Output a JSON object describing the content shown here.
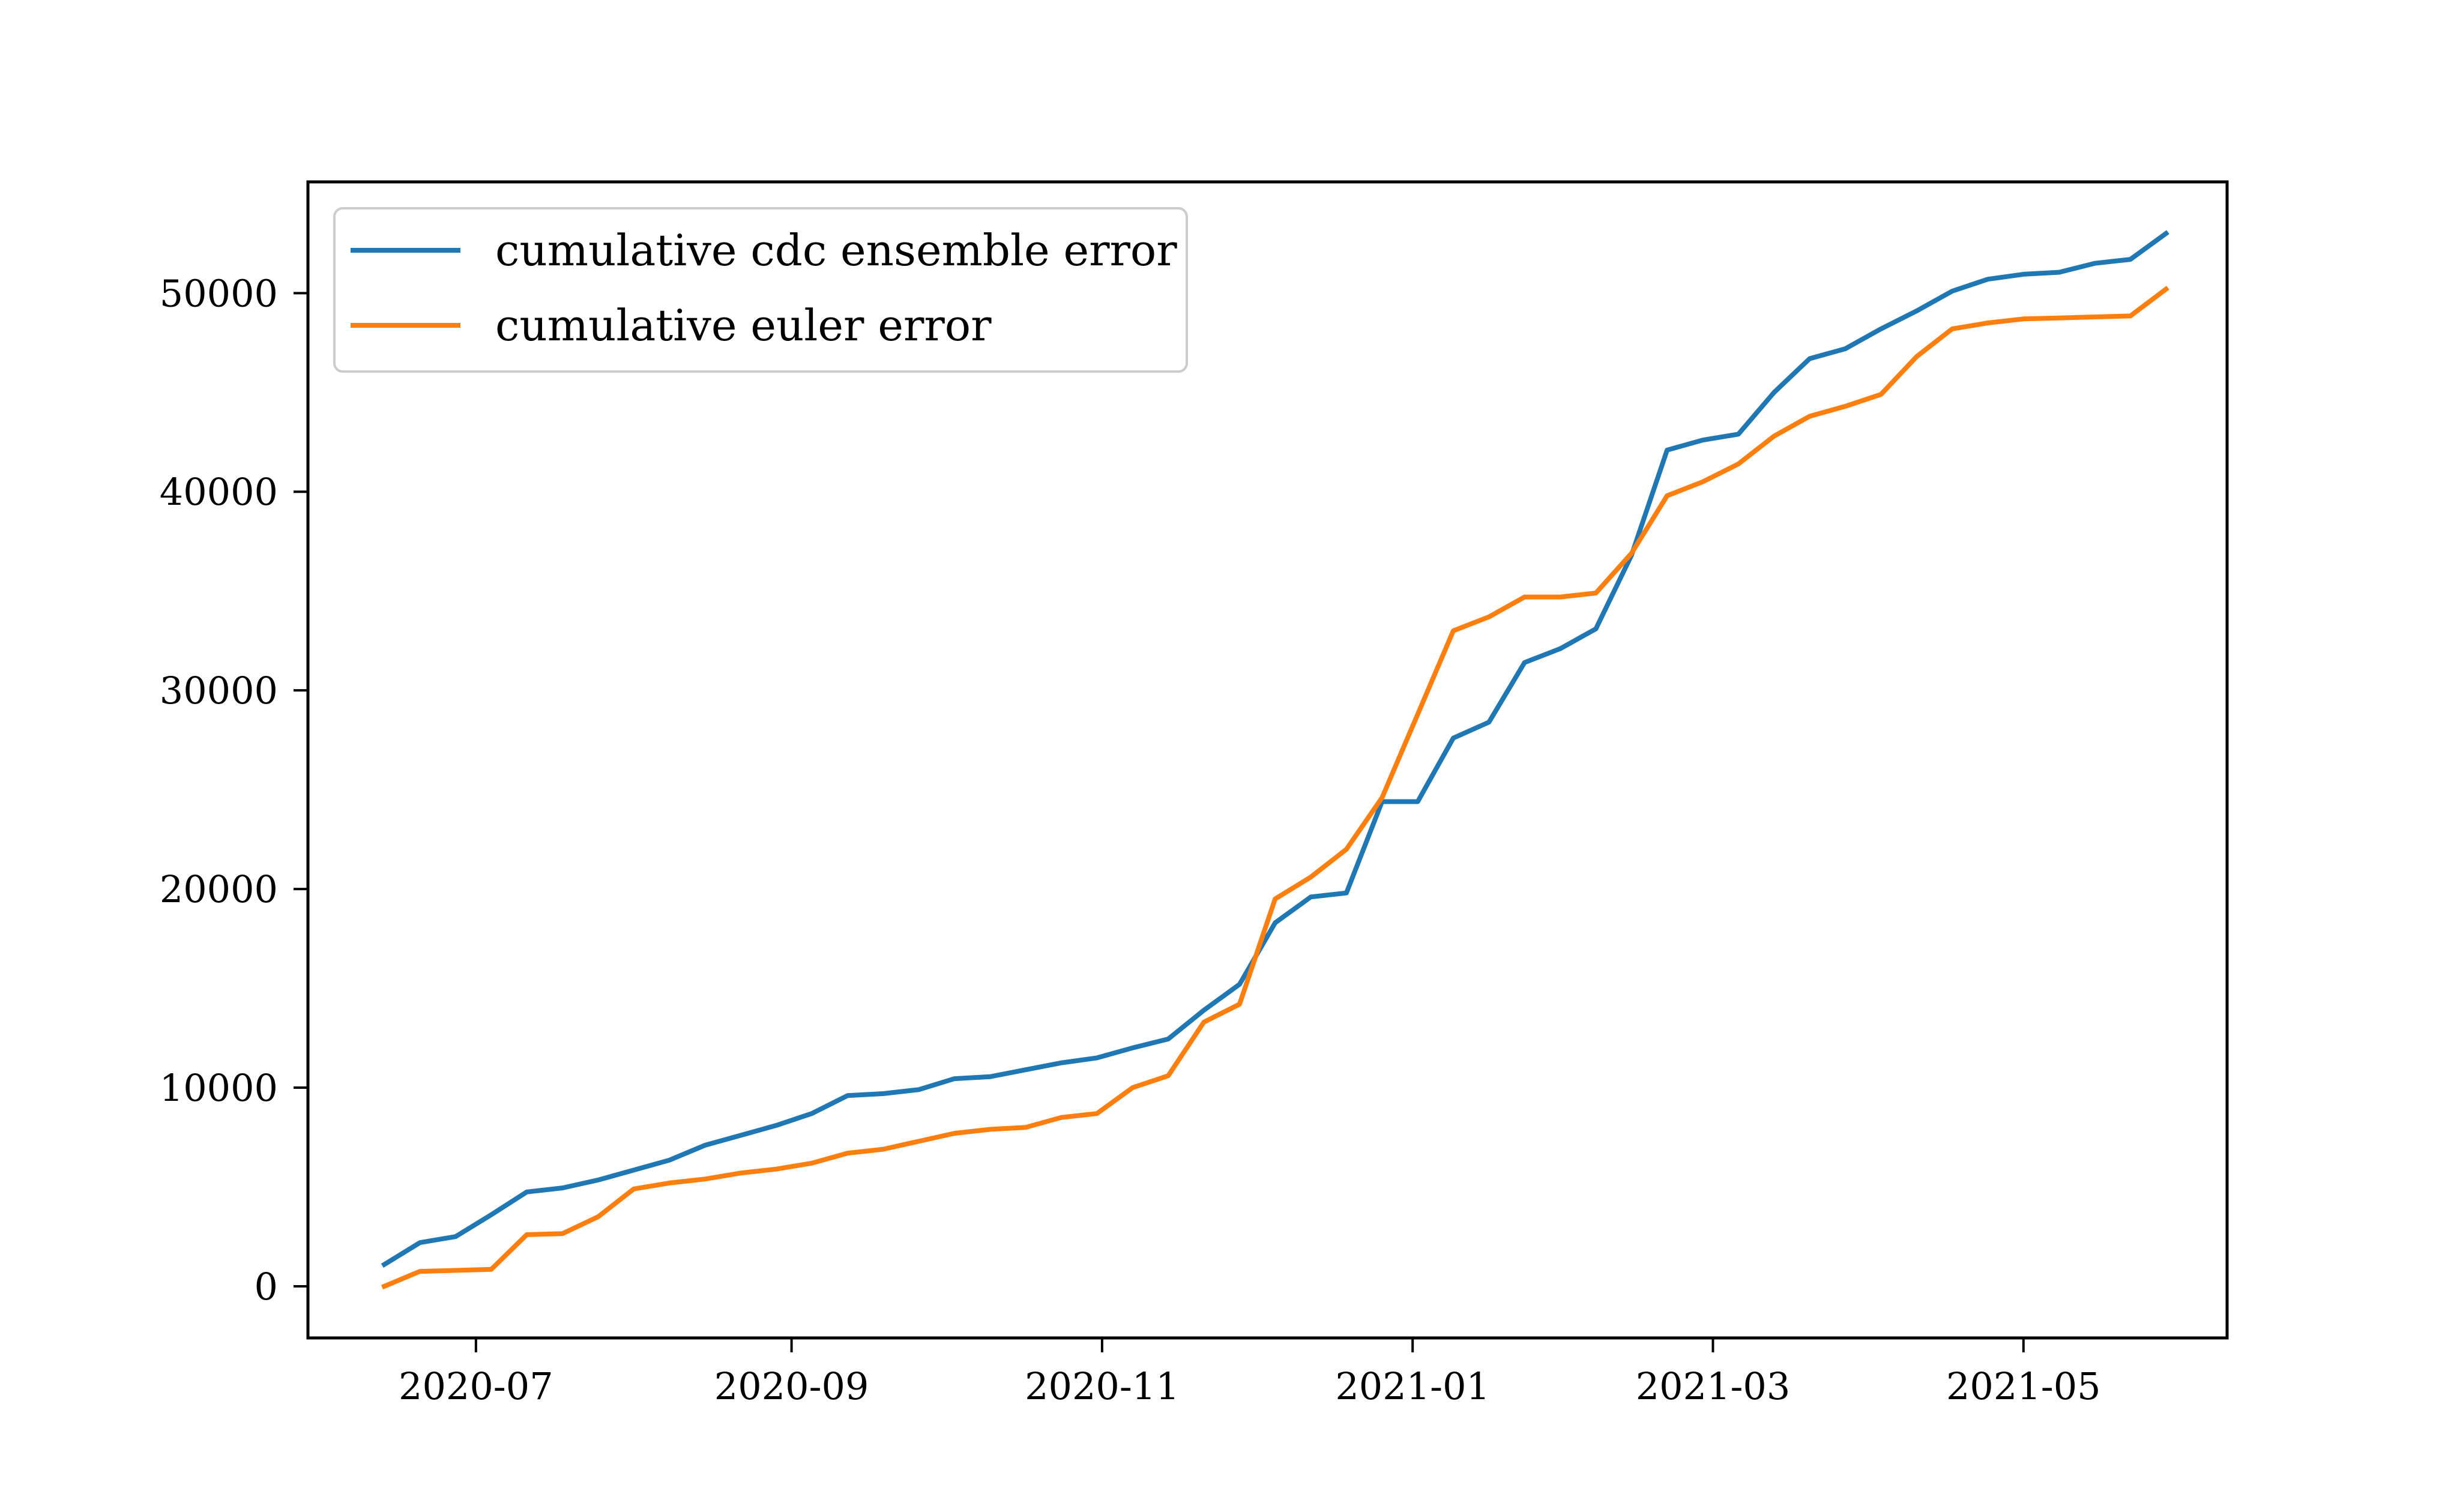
{
  "chart_data": {
    "type": "line",
    "title": "",
    "xlabel": "",
    "ylabel": "",
    "x_axis_type": "date",
    "xlim": [
      "2020-05-29",
      "2021-06-10"
    ],
    "ylim": [
      -2600,
      55600
    ],
    "grid": false,
    "legend_position": "top-left",
    "x_ticks": [
      {
        "date": "2020-07-01",
        "label": "2020-07"
      },
      {
        "date": "2020-09-01",
        "label": "2020-09"
      },
      {
        "date": "2020-11-01",
        "label": "2020-11"
      },
      {
        "date": "2021-01-01",
        "label": "2021-01"
      },
      {
        "date": "2021-03-01",
        "label": "2021-03"
      },
      {
        "date": "2021-05-01",
        "label": "2021-05"
      }
    ],
    "y_ticks": [
      {
        "value": 0,
        "label": "0"
      },
      {
        "value": 10000,
        "label": "10000"
      },
      {
        "value": 20000,
        "label": "20000"
      },
      {
        "value": 30000,
        "label": "30000"
      },
      {
        "value": 40000,
        "label": "40000"
      },
      {
        "value": 50000,
        "label": "50000"
      }
    ],
    "x": [
      "2020-06-13",
      "2020-06-20",
      "2020-06-27",
      "2020-07-04",
      "2020-07-11",
      "2020-07-18",
      "2020-07-25",
      "2020-08-01",
      "2020-08-08",
      "2020-08-15",
      "2020-08-22",
      "2020-08-29",
      "2020-09-05",
      "2020-09-12",
      "2020-09-19",
      "2020-09-26",
      "2020-10-03",
      "2020-10-10",
      "2020-10-17",
      "2020-10-24",
      "2020-10-31",
      "2020-11-07",
      "2020-11-14",
      "2020-11-21",
      "2020-11-28",
      "2020-12-05",
      "2020-12-12",
      "2020-12-19",
      "2020-12-26",
      "2021-01-02",
      "2021-01-09",
      "2021-01-16",
      "2021-01-23",
      "2021-01-30",
      "2021-02-06",
      "2021-02-13",
      "2021-02-20",
      "2021-02-27",
      "2021-03-06",
      "2021-03-13",
      "2021-03-20",
      "2021-03-27",
      "2021-04-03",
      "2021-04-10",
      "2021-04-17",
      "2021-04-24",
      "2021-05-01",
      "2021-05-08",
      "2021-05-15",
      "2021-05-22",
      "2021-05-29"
    ],
    "series": [
      {
        "name": "cumulative cdc ensemble error",
        "color": "#1f77b4",
        "values": [
          1100,
          2200,
          2500,
          3600,
          4750,
          4950,
          5350,
          5850,
          6350,
          7100,
          7600,
          8100,
          8700,
          9600,
          9700,
          9900,
          10450,
          10550,
          10900,
          11250,
          11500,
          12000,
          12450,
          13900,
          15200,
          18300,
          19600,
          19800,
          24400,
          24400,
          27600,
          28400,
          31400,
          32100,
          33100,
          36800,
          42100,
          42600,
          42900,
          45000,
          46700,
          47200,
          48200,
          49100,
          50100,
          50700,
          50950,
          51050,
          51500,
          51700,
          53000
        ]
      },
      {
        "name": "cumulative euler error",
        "color": "#ff7f0e",
        "values": [
          0,
          750,
          800,
          850,
          2600,
          2650,
          3500,
          4900,
          5200,
          5400,
          5700,
          5900,
          6200,
          6700,
          6900,
          7300,
          7700,
          7900,
          8000,
          8500,
          8700,
          10000,
          10600,
          13300,
          14200,
          19500,
          20600,
          22000,
          24600,
          28800,
          33000,
          33700,
          34700,
          34700,
          34900,
          36900,
          39800,
          40500,
          41400,
          42800,
          43800,
          44300,
          44900,
          46800,
          48200,
          48500,
          48700,
          48750,
          48800,
          48850,
          50200
        ]
      }
    ]
  }
}
